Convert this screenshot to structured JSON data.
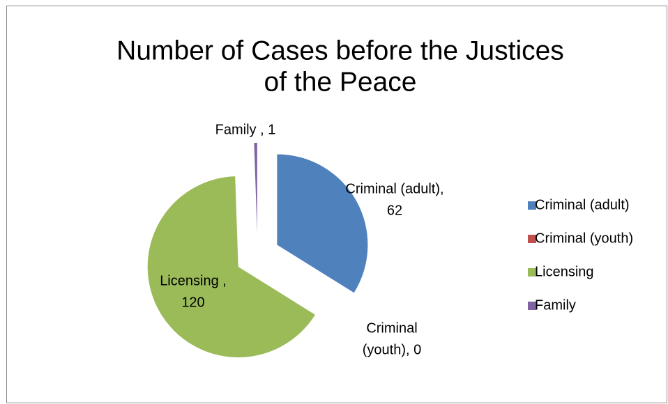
{
  "chart_data": {
    "type": "pie",
    "title": [
      "Number of Cases before the Justices",
      "of the Peace"
    ],
    "categories": [
      "Criminal (adult)",
      "Criminal (youth)",
      "Licensing",
      "Family"
    ],
    "values": [
      62,
      0,
      120,
      1
    ],
    "value_labels": [
      [
        "Criminal (adult),",
        "62"
      ],
      [
        "Criminal",
        "(youth), 0"
      ],
      [
        "Licensing ,",
        "120"
      ],
      [
        "Family , 1"
      ]
    ],
    "colors": [
      "#4f81bd",
      "#c0504d",
      "#9bbb59",
      "#8064a2"
    ],
    "legend": "right"
  }
}
